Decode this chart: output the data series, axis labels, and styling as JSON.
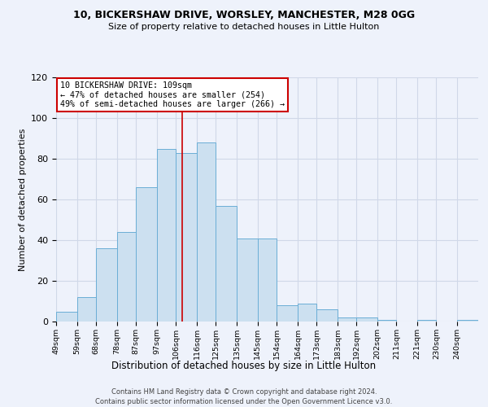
{
  "title_line1": "10, BICKERSHAW DRIVE, WORSLEY, MANCHESTER, M28 0GG",
  "title_line2": "Size of property relative to detached houses in Little Hulton",
  "xlabel": "Distribution of detached houses by size in Little Hulton",
  "ylabel": "Number of detached properties",
  "categories": [
    "49sqm",
    "59sqm",
    "68sqm",
    "78sqm",
    "87sqm",
    "97sqm",
    "106sqm",
    "116sqm",
    "125sqm",
    "135sqm",
    "145sqm",
    "154sqm",
    "164sqm",
    "173sqm",
    "183sqm",
    "192sqm",
    "202sqm",
    "211sqm",
    "221sqm",
    "230sqm",
    "240sqm"
  ],
  "bin_edges": [
    49,
    59,
    68,
    78,
    87,
    97,
    106,
    116,
    125,
    135,
    145,
    154,
    164,
    173,
    183,
    192,
    202,
    211,
    221,
    230,
    240,
    250
  ],
  "values": [
    5,
    12,
    36,
    44,
    66,
    85,
    83,
    88,
    57,
    41,
    41,
    8,
    9,
    6,
    2,
    2,
    1,
    0,
    1,
    0,
    1
  ],
  "bar_fill_color": "#cce0f0",
  "bar_edge_color": "#6baed6",
  "grid_color": "#d0d8e8",
  "background_color": "#eef2fb",
  "vline_x": 109,
  "vline_color": "#cc0000",
  "annotation_text": "10 BICKERSHAW DRIVE: 109sqm\n← 47% of detached houses are smaller (254)\n49% of semi-detached houses are larger (266) →",
  "annotation_box_color": "#ffffff",
  "annotation_box_edge": "#cc0000",
  "footer_line1": "Contains HM Land Registry data © Crown copyright and database right 2024.",
  "footer_line2": "Contains public sector information licensed under the Open Government Licence v3.0.",
  "ylim": [
    0,
    120
  ],
  "yticks": [
    0,
    20,
    40,
    60,
    80,
    100,
    120
  ]
}
